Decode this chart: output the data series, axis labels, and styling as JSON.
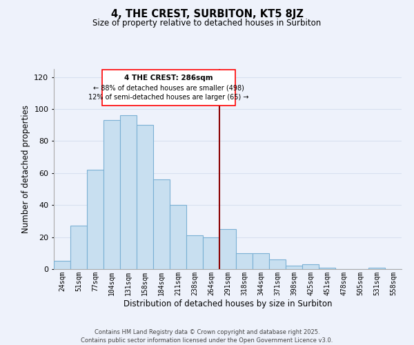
{
  "title": "4, THE CREST, SURBITON, KT5 8JZ",
  "subtitle": "Size of property relative to detached houses in Surbiton",
  "xlabel": "Distribution of detached houses by size in Surbiton",
  "ylabel": "Number of detached properties",
  "bar_labels": [
    "24sqm",
    "51sqm",
    "77sqm",
    "104sqm",
    "131sqm",
    "158sqm",
    "184sqm",
    "211sqm",
    "238sqm",
    "264sqm",
    "291sqm",
    "318sqm",
    "344sqm",
    "371sqm",
    "398sqm",
    "425sqm",
    "451sqm",
    "478sqm",
    "505sqm",
    "531sqm",
    "558sqm"
  ],
  "bar_values": [
    5,
    27,
    62,
    93,
    96,
    90,
    56,
    40,
    21,
    20,
    25,
    10,
    10,
    6,
    2,
    3,
    1,
    0,
    0,
    1,
    0
  ],
  "bar_color": "#c8dff0",
  "bar_edge_color": "#7ab0d4",
  "annotation_text_line1": "4 THE CREST: 286sqm",
  "annotation_text_line2": "← 88% of detached houses are smaller (498)",
  "annotation_text_line3": "12% of semi-detached houses are larger (65) →",
  "vline_color": "#8b0000",
  "vline_bar_index": 10,
  "ylim": [
    0,
    125
  ],
  "yticks": [
    0,
    20,
    40,
    60,
    80,
    100,
    120
  ],
  "footer_line1": "Contains HM Land Registry data © Crown copyright and database right 2025.",
  "footer_line2": "Contains public sector information licensed under the Open Government Licence v3.0.",
  "background_color": "#eef2fb",
  "grid_color": "#d8e0f0"
}
